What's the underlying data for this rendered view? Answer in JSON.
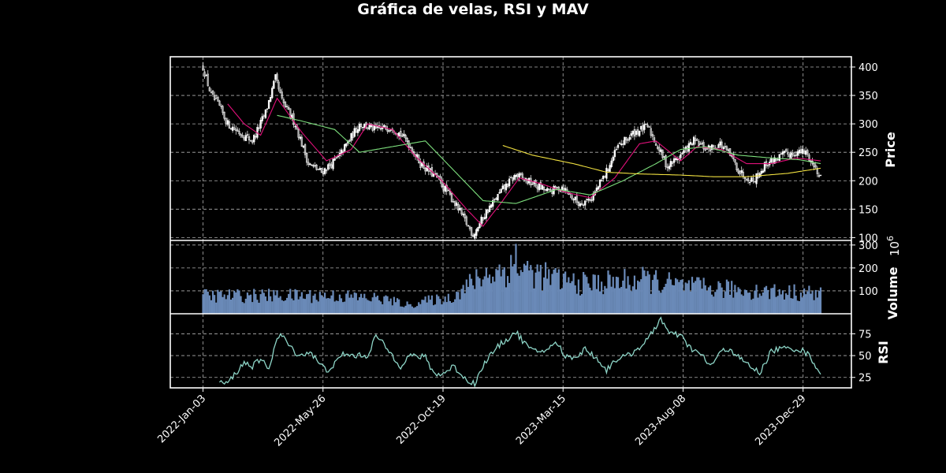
{
  "chart_data": {
    "type": "candlestick",
    "title": "Gráfica de velas, RSI y MAV",
    "colors": {
      "background": "#000000",
      "grid": "#b0b0b0",
      "candle": "#ffffff",
      "mav_short": "#e0107a",
      "mav_mid": "#7de07d",
      "mav_long": "#f0e040",
      "volume": "#6a8ab8",
      "rsi": "#8ed6c8"
    },
    "x_ticks": [
      "2022-Jan-03",
      "2022-May-26",
      "2022-Oct-19",
      "2023-Mar-15",
      "2023-Aug-08",
      "2023-Dec-29"
    ],
    "grid": true,
    "panels": {
      "price": {
        "ylabel": "Price",
        "ylim": [
          95,
          418
        ],
        "yticks": [
          100,
          150,
          200,
          250,
          300,
          350,
          400
        ],
        "close_anchors": [
          [
            0,
            400
          ],
          [
            5,
            350
          ],
          [
            10,
            330
          ],
          [
            15,
            300
          ],
          [
            22,
            285
          ],
          [
            30,
            270
          ],
          [
            38,
            320
          ],
          [
            44,
            380
          ],
          [
            48,
            340
          ],
          [
            56,
            300
          ],
          [
            64,
            230
          ],
          [
            72,
            215
          ],
          [
            82,
            240
          ],
          [
            95,
            300
          ],
          [
            105,
            290
          ],
          [
            115,
            295
          ],
          [
            124,
            270
          ],
          [
            132,
            230
          ],
          [
            142,
            205
          ],
          [
            152,
            165
          ],
          [
            164,
            105
          ],
          [
            172,
            145
          ],
          [
            182,
            185
          ],
          [
            190,
            210
          ],
          [
            200,
            195
          ],
          [
            210,
            180
          ],
          [
            218,
            190
          ],
          [
            228,
            160
          ],
          [
            236,
            170
          ],
          [
            244,
            210
          ],
          [
            252,
            260
          ],
          [
            262,
            285
          ],
          [
            270,
            295
          ],
          [
            276,
            260
          ],
          [
            282,
            225
          ],
          [
            290,
            245
          ],
          [
            298,
            270
          ],
          [
            306,
            255
          ],
          [
            314,
            265
          ],
          [
            320,
            245
          ],
          [
            326,
            215
          ],
          [
            334,
            200
          ],
          [
            342,
            230
          ],
          [
            352,
            245
          ],
          [
            360,
            250
          ],
          [
            366,
            250
          ],
          [
            371,
            225
          ],
          [
            375,
            210
          ]
        ],
        "mav": [
          {
            "span": 10,
            "color": "#e0107a",
            "anchors": [
              [
                15,
                335
              ],
              [
                25,
                300
              ],
              [
                35,
                280
              ],
              [
                45,
                345
              ],
              [
                60,
                285
              ],
              [
                75,
                235
              ],
              [
                90,
                255
              ],
              [
                100,
                300
              ],
              [
                115,
                290
              ],
              [
                130,
                240
              ],
              [
                145,
                200
              ],
              [
                160,
                150
              ],
              [
                170,
                120
              ],
              [
                182,
                165
              ],
              [
                192,
                205
              ],
              [
                205,
                195
              ],
              [
                220,
                180
              ],
              [
                235,
                170
              ],
              [
                250,
                205
              ],
              [
                265,
                265
              ],
              [
                275,
                270
              ],
              [
                290,
                235
              ],
              [
                300,
                260
              ],
              [
                315,
                255
              ],
              [
                330,
                230
              ],
              [
                345,
                230
              ],
              [
                360,
                240
              ],
              [
                375,
                235
              ]
            ]
          },
          {
            "span": 30,
            "color": "#7de07d",
            "anchors": [
              [
                45,
                315
              ],
              [
                60,
                305
              ],
              [
                80,
                290
              ],
              [
                95,
                250
              ],
              [
                115,
                260
              ],
              [
                135,
                270
              ],
              [
                150,
                225
              ],
              [
                170,
                165
              ],
              [
                190,
                160
              ],
              [
                215,
                185
              ],
              [
                235,
                175
              ],
              [
                255,
                200
              ],
              [
                275,
                230
              ],
              [
                290,
                255
              ],
              [
                305,
                260
              ],
              [
                325,
                245
              ],
              [
                345,
                240
              ],
              [
                362,
                237
              ],
              [
                375,
                230
              ]
            ]
          },
          {
            "span": 90,
            "color": "#f0e040",
            "anchors": [
              [
                182,
                262
              ],
              [
                200,
                245
              ],
              [
                225,
                230
              ],
              [
                245,
                215
              ],
              [
                265,
                212
              ],
              [
                290,
                210
              ],
              [
                310,
                207
              ],
              [
                330,
                207
              ],
              [
                355,
                213
              ],
              [
                375,
                222
              ]
            ]
          }
        ]
      },
      "volume": {
        "ylabel": "Volume",
        "unit_label": "10",
        "unit_exponent": "6",
        "ylim": [
          0,
          320
        ],
        "yticks": [
          100,
          200,
          300
        ],
        "anchors": [
          [
            0,
            85
          ],
          [
            40,
            85
          ],
          [
            80,
            85
          ],
          [
            110,
            70
          ],
          [
            125,
            40
          ],
          [
            135,
            60
          ],
          [
            150,
            75
          ],
          [
            170,
            180
          ],
          [
            190,
            220
          ],
          [
            210,
            170
          ],
          [
            230,
            140
          ],
          [
            250,
            150
          ],
          [
            270,
            160
          ],
          [
            290,
            130
          ],
          [
            330,
            110
          ],
          [
            375,
            95
          ]
        ]
      },
      "rsi": {
        "ylabel": "RSI",
        "ylim": [
          13,
          98
        ],
        "yticks": [
          25,
          50,
          75
        ],
        "anchors": [
          [
            10,
            21
          ],
          [
            14,
            17
          ],
          [
            20,
            30
          ],
          [
            25,
            42
          ],
          [
            30,
            38
          ],
          [
            35,
            45
          ],
          [
            40,
            36
          ],
          [
            45,
            70
          ],
          [
            48,
            73
          ],
          [
            55,
            55
          ],
          [
            60,
            50
          ],
          [
            65,
            55
          ],
          [
            70,
            42
          ],
          [
            75,
            33
          ],
          [
            80,
            40
          ],
          [
            85,
            52
          ],
          [
            90,
            50
          ],
          [
            100,
            50
          ],
          [
            105,
            73
          ],
          [
            110,
            62
          ],
          [
            120,
            38
          ],
          [
            125,
            50
          ],
          [
            135,
            48
          ],
          [
            140,
            30
          ],
          [
            145,
            28
          ],
          [
            152,
            38
          ],
          [
            160,
            22
          ],
          [
            165,
            18
          ],
          [
            172,
            45
          ],
          [
            180,
            62
          ],
          [
            190,
            77
          ],
          [
            195,
            65
          ],
          [
            200,
            55
          ],
          [
            205,
            55
          ],
          [
            210,
            58
          ],
          [
            215,
            65
          ],
          [
            220,
            48
          ],
          [
            228,
            50
          ],
          [
            232,
            58
          ],
          [
            240,
            45
          ],
          [
            245,
            33
          ],
          [
            250,
            45
          ],
          [
            258,
            50
          ],
          [
            262,
            55
          ],
          [
            270,
            68
          ],
          [
            278,
            93
          ],
          [
            283,
            75
          ],
          [
            290,
            73
          ],
          [
            295,
            60
          ],
          [
            303,
            50
          ],
          [
            308,
            38
          ],
          [
            315,
            55
          ],
          [
            320,
            58
          ],
          [
            325,
            48
          ],
          [
            332,
            38
          ],
          [
            338,
            30
          ],
          [
            345,
            55
          ],
          [
            350,
            58
          ],
          [
            360,
            58
          ],
          [
            365,
            55
          ],
          [
            369,
            48
          ],
          [
            372,
            38
          ],
          [
            375,
            30
          ]
        ]
      }
    }
  }
}
